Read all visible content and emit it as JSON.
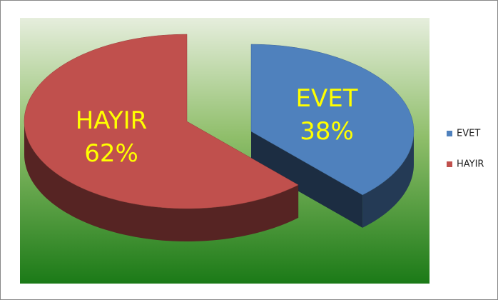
{
  "chart_data": {
    "type": "pie",
    "categories": [
      "EVET",
      "HAYIR"
    ],
    "values": [
      38,
      62
    ],
    "value_labels": [
      "38%",
      "62%"
    ],
    "colors": [
      "#4f81bd",
      "#c0504d"
    ],
    "legend": "right"
  }
}
